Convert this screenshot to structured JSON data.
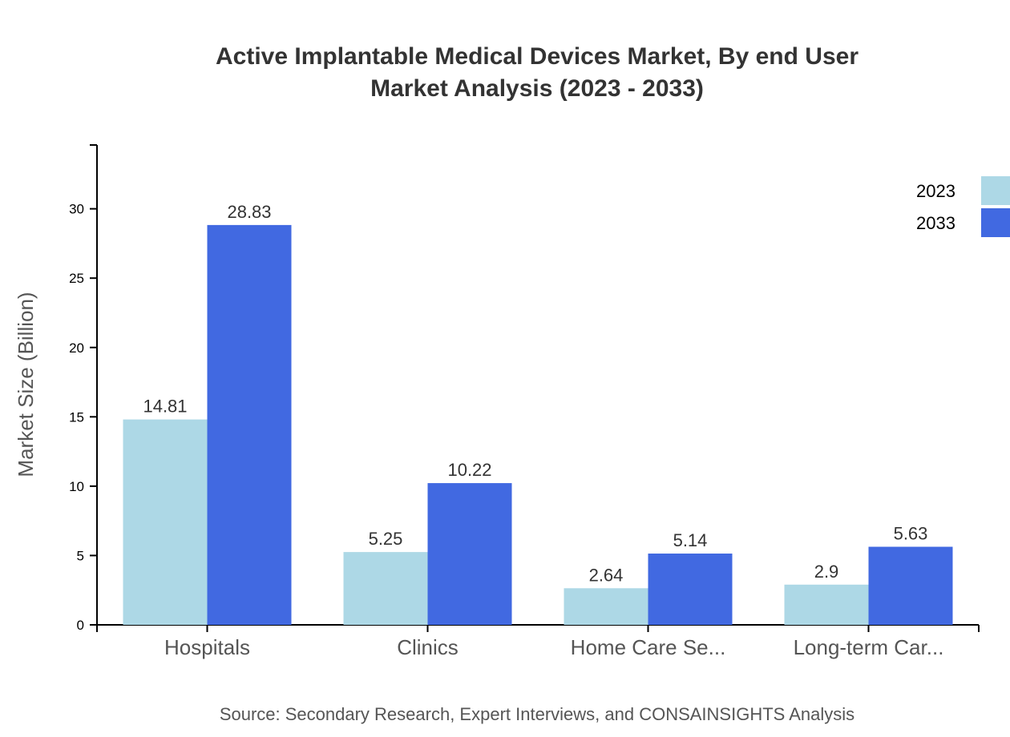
{
  "chart_data": {
    "type": "bar",
    "title": [
      "Active Implantable Medical Devices Market, By end User",
      "Market Analysis (2023 - 2033)"
    ],
    "xlabel": "",
    "ylabel": "Market Size (Billion)",
    "categories": [
      "Hospitals",
      "Clinics",
      "Home Care Se...",
      "Long-term Car..."
    ],
    "series": [
      {
        "name": "2023",
        "color": "#add8e6",
        "values": [
          14.81,
          5.25,
          2.64,
          2.9
        ]
      },
      {
        "name": "2033",
        "color": "#4169e1",
        "values": [
          28.83,
          10.22,
          5.14,
          5.63
        ]
      }
    ],
    "ylim": [
      0,
      34.6
    ],
    "yticks": [
      0,
      5,
      10,
      15,
      20,
      25,
      30
    ],
    "grid": false,
    "legend": "top-right",
    "source": "Source: Secondary Research, Expert Interviews, and CONSAINSIGHTS Analysis"
  }
}
